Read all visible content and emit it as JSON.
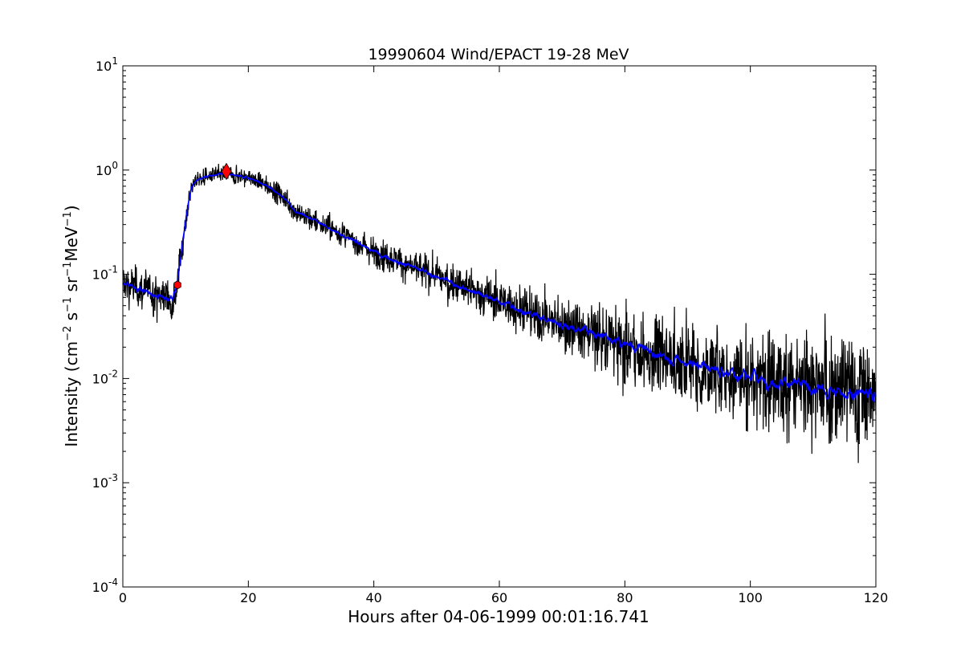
{
  "chart_data": {
    "type": "line",
    "title": "19990604 Wind/EPACT 19-28 MeV",
    "xlabel": "Hours after 04-06-1999 00:01:16.741",
    "ylabel": {
      "prefix": "Intensity (cm",
      "exp1": "−2",
      "mid1": " s",
      "exp2": "−1",
      "mid2": " sr",
      "exp3": "−1",
      "mid3": "MeV",
      "exp4": "−1",
      "suffix": ")"
    },
    "xlim": [
      0,
      120
    ],
    "ylim": [
      0.0001,
      10
    ],
    "yscale": "log",
    "grid": false,
    "xticks": [
      {
        "value": 0,
        "label": "0"
      },
      {
        "value": 20,
        "label": "20"
      },
      {
        "value": 40,
        "label": "40"
      },
      {
        "value": 60,
        "label": "60"
      },
      {
        "value": 80,
        "label": "80"
      },
      {
        "value": 100,
        "label": "100"
      },
      {
        "value": 120,
        "label": "120"
      }
    ],
    "yticks": [
      {
        "value": 10,
        "base": "10",
        "exp": "1"
      },
      {
        "value": 1,
        "base": "10",
        "exp": "0"
      },
      {
        "value": 0.1,
        "base": "10",
        "exp": "-1"
      },
      {
        "value": 0.01,
        "base": "10",
        "exp": "-2"
      },
      {
        "value": 0.001,
        "base": "10",
        "exp": "-3"
      },
      {
        "value": 0.0001,
        "base": "10",
        "exp": "-4"
      }
    ],
    "series": [
      {
        "color": "#000000",
        "style": "raw noisy intensity",
        "x": [
          0,
          2,
          4,
          6,
          8,
          8.7,
          9.5,
          10.5,
          11,
          12,
          14,
          16,
          18,
          20,
          22,
          24,
          26,
          27.5,
          30,
          35,
          40,
          45,
          50,
          55,
          60,
          65,
          70,
          75,
          80,
          85,
          90,
          95,
          100,
          105,
          110,
          115,
          120
        ],
        "y": [
          0.085,
          0.075,
          0.068,
          0.062,
          0.058,
          0.08,
          0.2,
          0.5,
          0.7,
          0.82,
          0.88,
          0.92,
          0.88,
          0.85,
          0.75,
          0.65,
          0.52,
          0.4,
          0.34,
          0.24,
          0.165,
          0.125,
          0.095,
          0.072,
          0.055,
          0.042,
          0.033,
          0.027,
          0.021,
          0.017,
          0.014,
          0.012,
          0.0105,
          0.0092,
          0.0082,
          0.0075,
          0.007
        ]
      },
      {
        "color": "#0000ff",
        "style": "smoothed intensity",
        "x": [
          0,
          2,
          4,
          6,
          8,
          8.7,
          9.5,
          10.5,
          11,
          12,
          14,
          16,
          18,
          20,
          22,
          24,
          26,
          27.5,
          30,
          35,
          40,
          45,
          50,
          55,
          60,
          65,
          70,
          75,
          80,
          85,
          90,
          95,
          100,
          105,
          110,
          115,
          120
        ],
        "y": [
          0.082,
          0.074,
          0.067,
          0.061,
          0.057,
          0.08,
          0.2,
          0.5,
          0.7,
          0.82,
          0.88,
          0.92,
          0.88,
          0.85,
          0.75,
          0.65,
          0.52,
          0.4,
          0.34,
          0.24,
          0.165,
          0.125,
          0.095,
          0.072,
          0.055,
          0.042,
          0.033,
          0.027,
          0.021,
          0.017,
          0.014,
          0.012,
          0.0105,
          0.0092,
          0.0082,
          0.0075,
          0.007
        ]
      }
    ],
    "markers": [
      {
        "x": 8.7,
        "y": 0.079,
        "shape": "hexagon",
        "color": "#ff0000"
      },
      {
        "x": 16.5,
        "y": 0.97,
        "shape": "diamond",
        "color": "#ff0000"
      }
    ]
  }
}
